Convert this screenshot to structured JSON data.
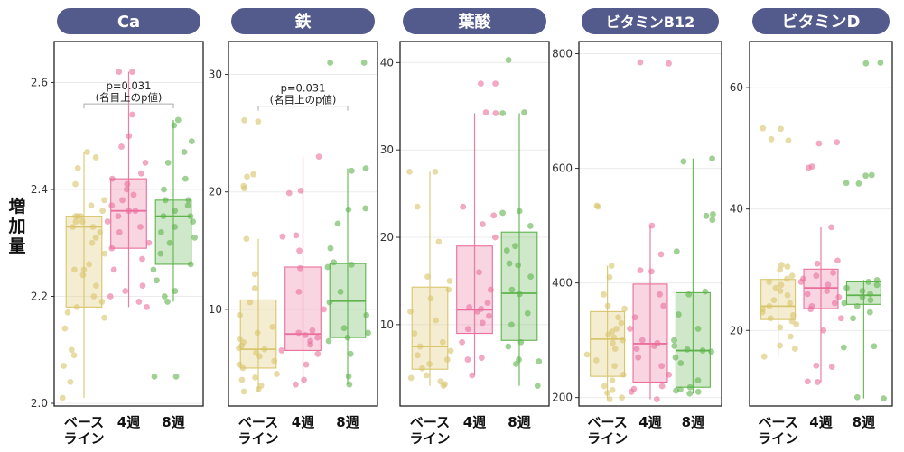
{
  "figure": {
    "ylabel": "増加量"
  },
  "colors": {
    "baseline": "#d9c56b",
    "week4": "#ea6f9b",
    "week8": "#5fb34d",
    "pill": "#535a8c"
  },
  "chart_data": [
    {
      "type": "box",
      "title": "Ca",
      "categories": [
        "ベース\nライン",
        "4週",
        "8週"
      ],
      "ylim": [
        2.0,
        2.67
      ],
      "yticks": [
        2.0,
        2.2,
        2.4,
        2.6
      ],
      "tick_decimals": 1,
      "annotation": {
        "text_line1": "p=0.031",
        "text_line2": "(名目上のp値)",
        "from": 0,
        "to": 2,
        "y": 2.56
      },
      "boxes": [
        {
          "q1": 2.18,
          "median": 2.33,
          "q3": 2.35,
          "whisker_low": 2.01,
          "whisker_high": 2.47
        },
        {
          "q1": 2.29,
          "median": 2.36,
          "q3": 2.42,
          "whisker_low": 2.18,
          "whisker_high": 2.62
        },
        {
          "q1": 2.26,
          "median": 2.35,
          "q3": 2.38,
          "whisker_low": 2.19,
          "whisker_high": 2.53
        }
      ],
      "points": [
        [
          2.01,
          2.04,
          2.07,
          2.09,
          2.1,
          2.14,
          2.16,
          2.17,
          2.18,
          2.19,
          2.2,
          2.22,
          2.24,
          2.25,
          2.25,
          2.26,
          2.28,
          2.3,
          2.31,
          2.32,
          2.33,
          2.33,
          2.34,
          2.34,
          2.35,
          2.35,
          2.35,
          2.36,
          2.37,
          2.38,
          2.41,
          2.44,
          2.46,
          2.47
        ],
        [
          2.18,
          2.19,
          2.2,
          2.21,
          2.22,
          2.25,
          2.27,
          2.29,
          2.3,
          2.32,
          2.33,
          2.34,
          2.35,
          2.36,
          2.36,
          2.37,
          2.38,
          2.39,
          2.4,
          2.41,
          2.42,
          2.43,
          2.45,
          2.48,
          2.5,
          2.54,
          2.62,
          2.62
        ],
        [
          2.05,
          2.05,
          2.19,
          2.2,
          2.21,
          2.23,
          2.25,
          2.26,
          2.28,
          2.3,
          2.31,
          2.32,
          2.33,
          2.34,
          2.35,
          2.35,
          2.36,
          2.37,
          2.38,
          2.38,
          2.4,
          2.42,
          2.45,
          2.47,
          2.49,
          2.52,
          2.53
        ]
      ]
    },
    {
      "type": "box",
      "title": "鉄",
      "categories": [
        "ベース\nライン",
        "4週",
        "8週"
      ],
      "ylim": [
        2,
        32.5
      ],
      "yticks": [
        10,
        20,
        30
      ],
      "tick_decimals": 0,
      "annotation": {
        "text_line1": "p=0.031",
        "text_line2": "(名目上のp値)",
        "from": 0,
        "to": 2,
        "y": 27.3
      },
      "boxes": [
        {
          "q1": 5.0,
          "median": 6.6,
          "q3": 10.8,
          "whisker_low": 3.0,
          "whisker_high": 16.0
        },
        {
          "q1": 6.5,
          "median": 7.9,
          "q3": 13.6,
          "whisker_low": 3.6,
          "whisker_high": 23.0
        },
        {
          "q1": 7.6,
          "median": 10.7,
          "q3": 13.9,
          "whisker_low": 3.6,
          "whisker_high": 22.0
        }
      ],
      "points": [
        [
          3.0,
          3.2,
          3.5,
          4.0,
          4.2,
          4.5,
          5.0,
          5.3,
          5.6,
          6.0,
          6.3,
          6.6,
          6.7,
          6.9,
          7.2,
          7.5,
          8.0,
          8.5,
          9.5,
          10.6,
          11.8,
          13.0,
          16.0,
          20.3,
          20.5,
          21.3,
          21.5,
          26.0,
          26.1
        ],
        [
          3.6,
          4.0,
          5.3,
          6.2,
          6.5,
          7.0,
          7.3,
          7.6,
          7.8,
          8.0,
          8.2,
          10.0,
          11.5,
          13.5,
          15.0,
          16.2,
          16.3,
          19.9,
          20.1,
          23.0
        ],
        [
          3.6,
          4.3,
          6.2,
          7.3,
          7.6,
          8.0,
          8.4,
          9.5,
          10.6,
          11.5,
          13.6,
          13.8,
          14.0,
          15.2,
          17.3,
          18.5,
          18.6,
          21.8,
          22.0,
          31.0,
          31.0
        ]
      ]
    },
    {
      "type": "box",
      "title": "葉酸",
      "categories": [
        "ベース\nライン",
        "4週",
        "8週"
      ],
      "ylim": [
        1,
        42
      ],
      "yticks": [
        10,
        20,
        30,
        40
      ],
      "tick_decimals": 0,
      "boxes": [
        {
          "q1": 4.9,
          "median": 7.5,
          "q3": 14.3,
          "whisker_low": 3.0,
          "whisker_high": 27.5
        },
        {
          "q1": 9.0,
          "median": 11.7,
          "q3": 19.0,
          "whisker_low": 4.2,
          "whisker_high": 34.2
        },
        {
          "q1": 8.2,
          "median": 13.6,
          "q3": 20.6,
          "whisker_low": 3.0,
          "whisker_high": 34.2
        }
      ],
      "points": [
        [
          3.0,
          3.2,
          3.5,
          3.9,
          4.2,
          5.0,
          5.5,
          6.0,
          6.5,
          7.0,
          7.5,
          8.0,
          9.0,
          10.5,
          11.5,
          13.0,
          14.0,
          15.0,
          15.5,
          19.5,
          23.5,
          27.5,
          27.5
        ],
        [
          4.2,
          6.0,
          6.2,
          8.0,
          9.5,
          10.2,
          11.0,
          11.5,
          11.8,
          12.0,
          12.5,
          14.0,
          16.0,
          20.0,
          21.5,
          22.5,
          23.5,
          34.2,
          34.3,
          37.6,
          37.6
        ],
        [
          3.0,
          5.5,
          5.8,
          6.0,
          7.5,
          8.0,
          10.0,
          11.3,
          13.5,
          14.0,
          15.5,
          16.8,
          17.0,
          18.5,
          19.0,
          21.3,
          22.8,
          23.0,
          34.2,
          34.3,
          40.3
        ]
      ]
    },
    {
      "type": "box",
      "title": "ビタミンB12",
      "categories": [
        "ベース\nライン",
        "4週",
        "8週"
      ],
      "ylim": [
        190,
        815
      ],
      "yticks": [
        200,
        400,
        600,
        800
      ],
      "tick_decimals": 0,
      "boxes": [
        {
          "q1": 237,
          "median": 302,
          "q3": 350,
          "whisker_low": 197,
          "whisker_high": 430
        },
        {
          "q1": 227,
          "median": 294,
          "q3": 398,
          "whisker_low": 197,
          "whisker_high": 500
        },
        {
          "q1": 218,
          "median": 282,
          "q3": 383,
          "whisker_low": 207,
          "whisker_high": 617
        }
      ],
      "points": [
        [
          197,
          200,
          208,
          213,
          220,
          230,
          240,
          255,
          265,
          275,
          285,
          295,
          300,
          305,
          310,
          315,
          320,
          330,
          340,
          355,
          360,
          380,
          410,
          430,
          533,
          535
        ],
        [
          197,
          210,
          215,
          220,
          240,
          255,
          270,
          285,
          290,
          295,
          300,
          320,
          340,
          360,
          380,
          420,
          422,
          450,
          500,
          783,
          785
        ],
        [
          207,
          210,
          212,
          214,
          218,
          230,
          260,
          270,
          280,
          282,
          284,
          290,
          300,
          320,
          345,
          380,
          385,
          455,
          510,
          517,
          520,
          612,
          617
        ]
      ]
    },
    {
      "type": "box",
      "title": "ビタミンD",
      "categories": [
        "ベース\nライン",
        "4週",
        "8週"
      ],
      "ylim": [
        8,
        67
      ],
      "yticks": [
        20,
        40,
        60
      ],
      "tick_decimals": 0,
      "boxes": [
        {
          "q1": 21.8,
          "median": 24.0,
          "q3": 28.4,
          "whisker_low": 15.7,
          "whisker_high": 30.8
        },
        {
          "q1": 23.6,
          "median": 27.0,
          "q3": 30.1,
          "whisker_low": 11.5,
          "whisker_high": 37.0
        },
        {
          "q1": 24.3,
          "median": 25.8,
          "q3": 28.0,
          "whisker_low": 8.8,
          "whisker_high": 28.3
        }
      ],
      "points": [
        [
          15.7,
          17.0,
          17.5,
          19.0,
          20.5,
          21.0,
          21.5,
          22.0,
          22.5,
          23.0,
          23.5,
          24.0,
          24.5,
          25.0,
          25.8,
          26.5,
          27.0,
          27.5,
          28.0,
          28.5,
          29.0,
          30.0,
          30.5,
          30.8,
          51.3,
          51.5,
          53.2,
          53.3
        ],
        [
          11.5,
          11.6,
          14.0,
          14.2,
          20.0,
          22.0,
          23.5,
          24.0,
          24.5,
          25.5,
          26.0,
          26.5,
          27.5,
          28.0,
          28.5,
          29.0,
          29.5,
          31.0,
          31.5,
          37.0,
          46.8,
          47.0,
          50.8,
          51.0
        ],
        [
          8.8,
          9.0,
          17.2,
          17.4,
          22.0,
          23.0,
          24.0,
          24.5,
          25.0,
          25.5,
          26.0,
          26.5,
          27.0,
          27.5,
          28.0,
          28.3,
          44.2,
          44.3,
          45.5,
          45.6,
          64.0,
          64.1
        ]
      ]
    }
  ]
}
